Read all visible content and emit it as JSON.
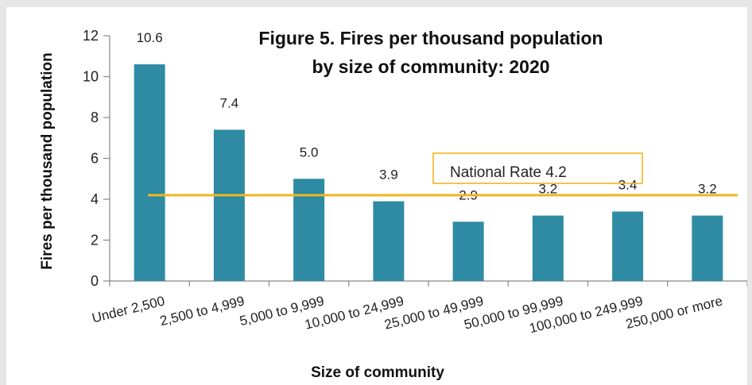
{
  "chart_data": {
    "type": "bar",
    "title": "Figure 5. Fires per thousand population",
    "subtitle": "by size of community: 2020",
    "xlabel": "Size of community",
    "ylabel": "Fires per thousand population",
    "categories": [
      "Under 2,500",
      "2,500 to 4,999",
      "5,000 to 9,999",
      "10,000 to 24,999",
      "25,000 to 49,999",
      "50,000 to 99,999",
      "100,000 to 249,999",
      "250,000 or more"
    ],
    "values": [
      10.6,
      7.4,
      5.0,
      3.9,
      2.9,
      3.2,
      3.4,
      3.2
    ],
    "value_labels": [
      "10.6",
      "7.4",
      "5.0",
      "3.9",
      "2.9",
      "3.2",
      "3.4",
      "3.2"
    ],
    "ylim": [
      0,
      12
    ],
    "yticks": [
      0,
      2,
      4,
      6,
      8,
      10,
      12
    ],
    "grid": false,
    "legend": "none",
    "reference_line": {
      "label": "National Rate 4.2",
      "value": 4.2
    },
    "colors": {
      "bar": "#2e8ba3",
      "reference_line": "#f2b51e",
      "reference_box": "#f2b51e"
    }
  }
}
